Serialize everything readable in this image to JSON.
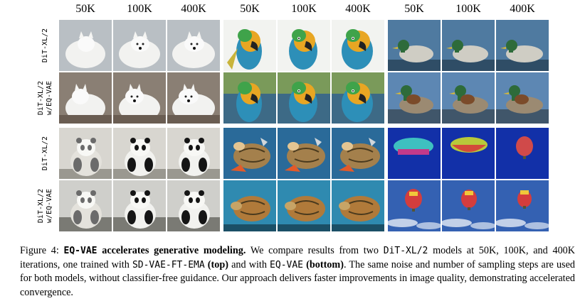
{
  "column_headers": [
    "50K",
    "100K",
    "400K",
    "50K",
    "100K",
    "400K",
    "50K",
    "100K",
    "400K"
  ],
  "row_labels": {
    "r1": "DiT-XL/2",
    "r2_line1": "DiT-XL/2",
    "r2_line2": "w/EQ-VAE",
    "r3": "DiT-XL/2",
    "r4_line1": "DiT-XL/2",
    "r4_line2": "w/EQ-VAE"
  },
  "caption": {
    "figure_label": "Figure 4: ",
    "title_mono": "EQ-VAE",
    "title_rest": " accelerates generative modeling.",
    "t1": " We compare results from two ",
    "m1": "DiT-XL/2",
    "t2": " models at 50K, 100K, and 400K iterations, one trained with ",
    "m2": "SD-VAE-FT-EMA",
    "b1": " (top)",
    "t3": " and with ",
    "m3": "EQ-VAE",
    "b2": " (bottom)",
    "t4": ". The same noise and number of sampling steps are used for both models, without classifier-free guidance. Our approach delivers faster improvements in image quality, demonstrating accelerated convergence."
  },
  "image_subjects": [
    [
      "arctic-fox-image",
      "arctic-fox-image",
      "arctic-fox-image",
      "parrot-image",
      "parrot-image",
      "parrot-image",
      "duck-image",
      "duck-image",
      "duck-image"
    ],
    [
      "arctic-fox-image",
      "arctic-fox-image",
      "arctic-fox-image",
      "parrot-image",
      "parrot-image",
      "parrot-image",
      "duck-image",
      "duck-image",
      "duck-image"
    ],
    [
      "panda-image",
      "panda-image",
      "panda-image",
      "sea-turtle-image",
      "sea-turtle-image",
      "sea-turtle-image",
      "hot-air-balloon-image",
      "hot-air-balloon-image",
      "hot-air-balloon-image"
    ],
    [
      "panda-image",
      "panda-image",
      "panda-image",
      "sea-turtle-image",
      "sea-turtle-image",
      "sea-turtle-image",
      "hot-air-balloon-image",
      "hot-air-balloon-image",
      "hot-air-balloon-image"
    ]
  ]
}
